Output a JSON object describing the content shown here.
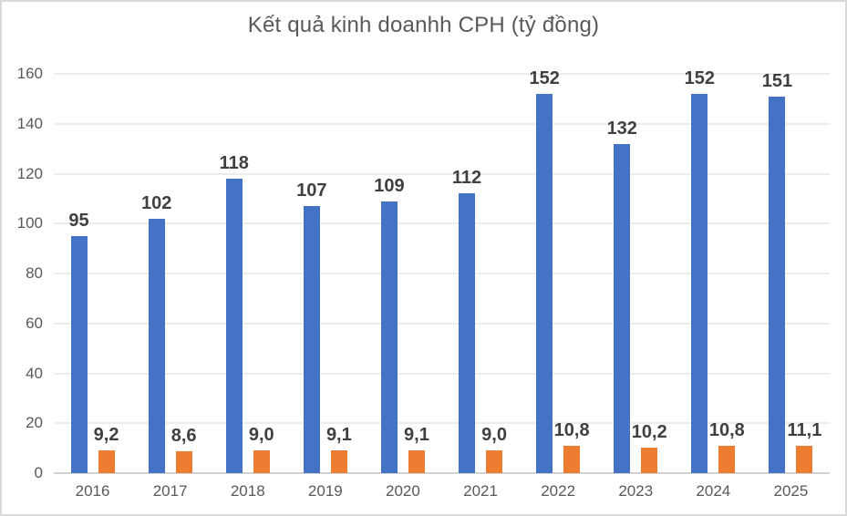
{
  "chart_data": {
    "type": "bar",
    "title": "Kết quả kinh doanhh CPH (tỷ đồng)",
    "categories": [
      "2016",
      "2017",
      "2018",
      "2019",
      "2020",
      "2021",
      "2022",
      "2023",
      "2024",
      "2025"
    ],
    "series": [
      {
        "key": "blue",
        "color": "#4472C4",
        "values": [
          95,
          102,
          118,
          107,
          109,
          112,
          152,
          132,
          152,
          151
        ],
        "labels": [
          "95",
          "102",
          "118",
          "107",
          "109",
          "112",
          "152",
          "132",
          "152",
          "151"
        ]
      },
      {
        "key": "orange",
        "color": "#ED7D31",
        "values": [
          9.2,
          8.6,
          9.0,
          9.1,
          9.1,
          9.0,
          10.8,
          10.2,
          10.8,
          11.1
        ],
        "labels": [
          "9,2",
          "8,6",
          "9,0",
          "9,1",
          "9,1",
          "9,0",
          "10,8",
          "10,2",
          "10,8",
          "11,1"
        ]
      }
    ],
    "xlabel": "",
    "ylabel": "",
    "ylim": [
      0,
      160
    ],
    "yticks": [
      0,
      20,
      40,
      60,
      80,
      100,
      120,
      140,
      160
    ],
    "grid": true,
    "legend_position": "none",
    "colors": {
      "grid": "#D9D9D9",
      "axis_line": "#D2D2D2",
      "axis_text": "#595959",
      "title_text": "#595959",
      "data_label_text": "#404040",
      "chart_border": "#D9D9D9",
      "background": "#FFFFFF"
    }
  }
}
